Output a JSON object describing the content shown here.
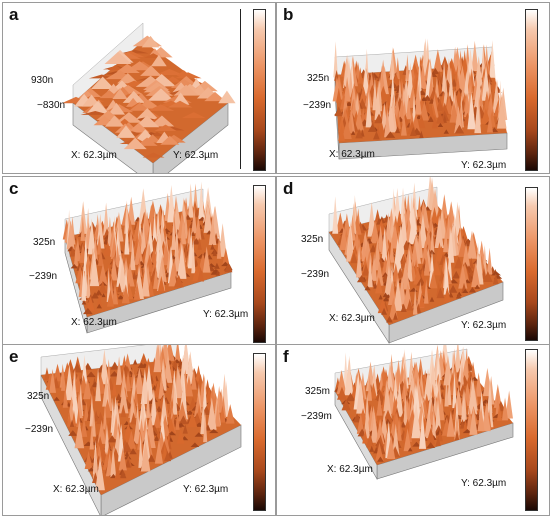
{
  "figure": {
    "panels": [
      {
        "letter": "a",
        "z_top": "930n",
        "z_bottom": "−830n",
        "x_label": "X: 62.3µm",
        "y_label": "Y: 62.3µm",
        "texture": "smooth"
      },
      {
        "letter": "b",
        "z_top": "325n",
        "z_bottom": "−239n",
        "x_label": "X: 62.3µm",
        "y_label": "Y: 62.3µm",
        "texture": "rough"
      },
      {
        "letter": "c",
        "z_top": "325n",
        "z_bottom": "−239n",
        "x_label": "X: 62.3µm",
        "y_label": "Y: 62.3µm",
        "texture": "rough"
      },
      {
        "letter": "d",
        "z_top": "325n",
        "z_bottom": "−239n",
        "x_label": "X: 62.3µm",
        "y_label": "Y: 62.3µm",
        "texture": "rough"
      },
      {
        "letter": "e",
        "z_top": "325n",
        "z_bottom": "−239n",
        "x_label": "X: 62.3µm",
        "y_label": "Y: 62.3µm",
        "texture": "rough"
      },
      {
        "letter": "f",
        "z_top": "325m",
        "z_bottom": "−239m",
        "x_label": "X: 62.3µm",
        "y_label": "Y: 62.3µm",
        "texture": "rough"
      }
    ],
    "colors": {
      "surface_light": "#ffffff",
      "surface_mid": "#e0763a",
      "surface_dark": "#5a230e",
      "frame": "#9a9a9a"
    }
  }
}
